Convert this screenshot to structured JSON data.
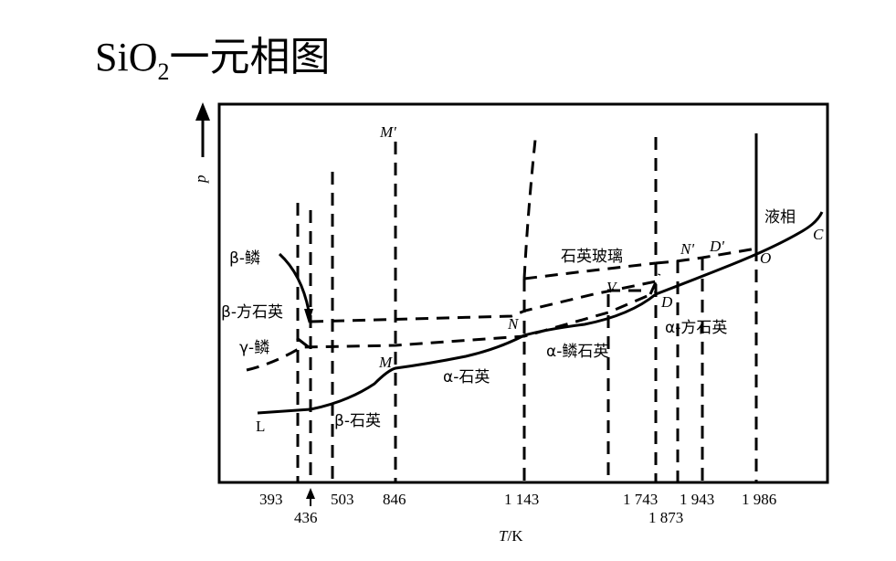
{
  "title": {
    "main": "SiO",
    "sub": "2",
    "rest": "一元相图"
  },
  "axes": {
    "y_label": "p",
    "x_label_italic": "T",
    "x_label_unit": "/K"
  },
  "x_ticks": [
    "393",
    "436",
    "503",
    "846",
    "1 143",
    "1 743",
    "1 873",
    "1 943",
    "1 986"
  ],
  "phase_labels": {
    "beta_tridymite": "β-鳞",
    "beta_cristobalite": "β-方石英",
    "gamma_tridymite": "γ-鳞",
    "beta_quartz": "β-石英",
    "alpha_quartz": "α-石英",
    "alpha_tridymite_quartz": "α-鳞石英",
    "silica_glass": "石英玻璃",
    "alpha_cristobalite": "α-方石英",
    "liquid": "液相"
  },
  "points": {
    "L": "L",
    "M": "M",
    "M_prime": "M'",
    "N": "N",
    "N_prime": "N'",
    "V": "V",
    "D": "D",
    "D_prime": "D'",
    "O": "O",
    "C": "C"
  }
}
